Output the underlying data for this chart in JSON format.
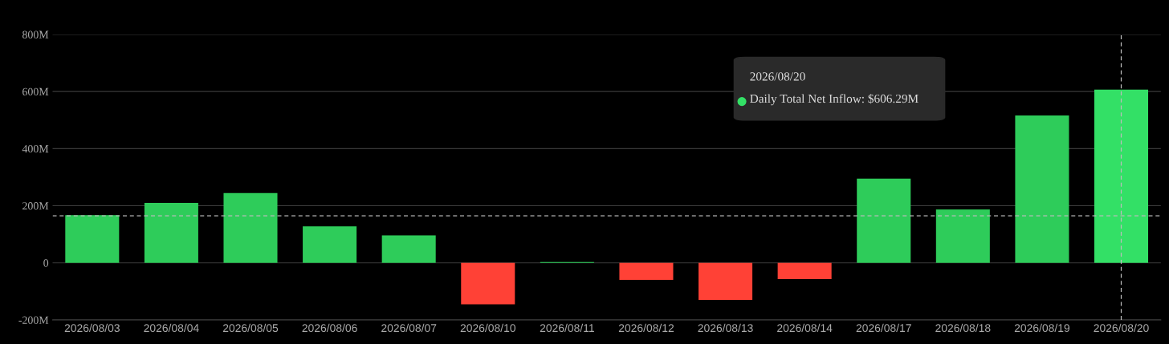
{
  "chart_data": {
    "type": "bar",
    "categories": [
      "2026/08/03",
      "2026/08/04",
      "2026/08/05",
      "2026/08/06",
      "2026/08/07",
      "2026/08/10",
      "2026/08/11",
      "2026/08/12",
      "2026/08/13",
      "2026/08/14",
      "2026/08/17",
      "2026/08/18",
      "2026/08/19",
      "2026/08/20"
    ],
    "values": [
      167,
      210,
      244,
      128,
      96,
      -145,
      3,
      -60,
      -130,
      -57,
      295,
      187,
      516,
      606.29
    ],
    "colors": [
      "#2ecc5a",
      "#2ecc5a",
      "#2ecc5a",
      "#2ecc5a",
      "#2ecc5a",
      "#ff4136",
      "#2ecc5a",
      "#ff4136",
      "#ff4136",
      "#ff4136",
      "#2ecc5a",
      "#2ecc5a",
      "#2ecc5a",
      "#33e066"
    ],
    "ylim": [
      -200,
      800
    ],
    "yticks": [
      {
        "value": -200,
        "label": "-200M"
      },
      {
        "value": 0,
        "label": "0"
      },
      {
        "value": 200,
        "label": "200M"
      },
      {
        "value": 400,
        "label": "400M"
      },
      {
        "value": 600,
        "label": "600M"
      },
      {
        "value": 800,
        "label": "800M"
      }
    ],
    "grid": "y",
    "ref_lines": [
      {
        "axis": "y",
        "value": 165,
        "color": "#bbbbbb",
        "line_style": "dashed"
      },
      {
        "axis": "x",
        "value": "2026/08/20",
        "color": "#bbbbbb",
        "line_style": "dashed"
      }
    ],
    "annotations": [
      "2026/08/20\nDaily Total Net Inflow: $606.29M"
    ]
  }
}
